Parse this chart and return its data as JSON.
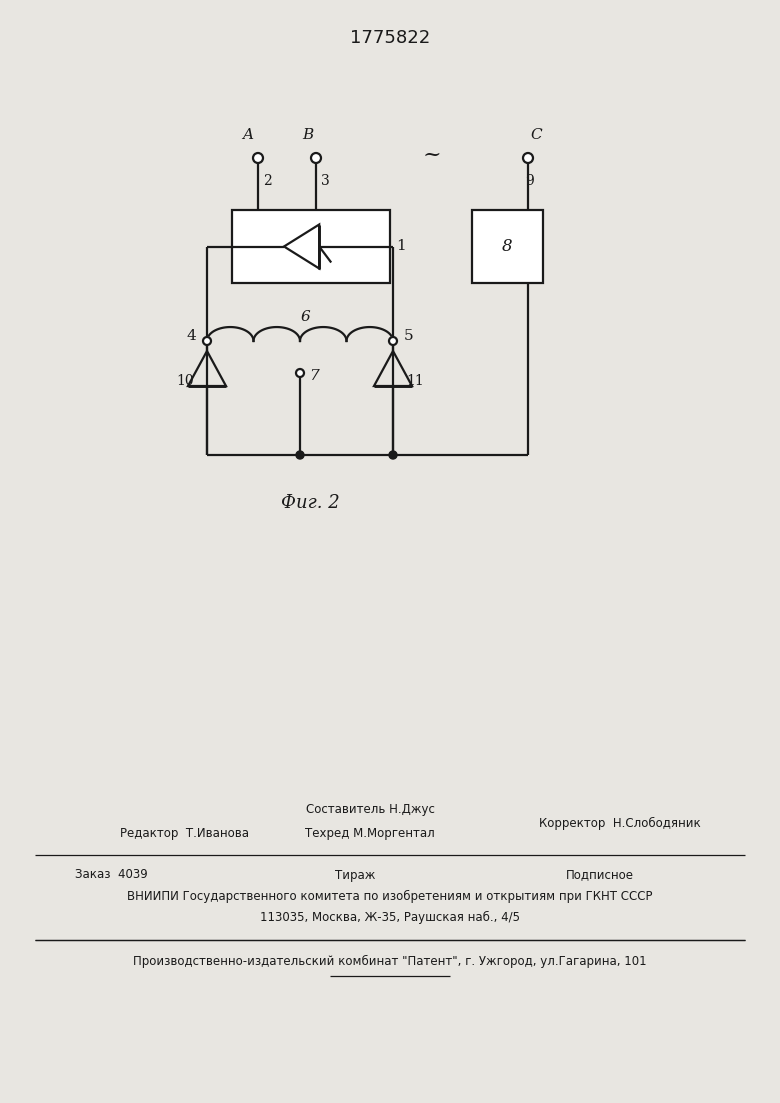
{
  "title": "1775822",
  "fig_caption": "Фиг. 2",
  "background_color": "#e8e6e1",
  "line_color": "#1a1a1a",
  "lw": 1.6,
  "header": {
    "editor_label": "Редактор  Т.Иванова",
    "composer_line1": "Составитель Н.Джус",
    "composer_line2": "Техред М.Моргентал",
    "corrector_label": "Корректор  Н.Слободяник",
    "order_label": "Заказ  4039",
    "tirazh_label": "Тираж",
    "podpisnoe_label": "Подписное",
    "vniiipi_line": "ВНИИПИ Государственного комитета по изобретениям и открытиям при ГКНТ СССР",
    "address_line": "113035, Москва, Ж-35, Раушская наб., 4/5",
    "publisher_line": "Производственно-издательский комбинат \"Патент\", г. Ужгород, ул.Гагарина, 101"
  }
}
